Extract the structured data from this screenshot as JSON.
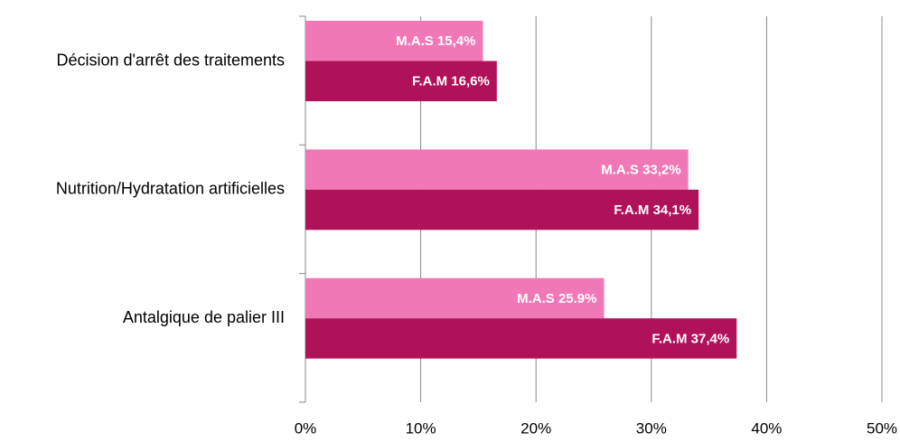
{
  "chart_data": {
    "type": "barh",
    "categories": [
      "Décision d'arrêt des traitements",
      "Nutrition/Hydratation artificielles",
      "Antalgique de palier III"
    ],
    "series": [
      {
        "name": "M.A.S",
        "color": "#f178b6",
        "values": [
          15.4,
          33.2,
          25.9
        ],
        "value_labels": [
          "M.A.S 15,4%",
          "M.A.S 33,2%",
          "M.A.S 25.9%"
        ]
      },
      {
        "name": "F.A.M",
        "color": "#b0125a",
        "values": [
          16.6,
          34.1,
          37.4
        ],
        "value_labels": [
          "F.A.M 16,6%",
          "F.A.M 34,1%",
          "F.A.M 37,4%"
        ]
      }
    ],
    "xlim": [
      0,
      50
    ],
    "xticks": [
      {
        "value": 0,
        "label": "0%"
      },
      {
        "value": 10,
        "label": "10%"
      },
      {
        "value": 20,
        "label": "20%"
      },
      {
        "value": 30,
        "label": "30%"
      },
      {
        "value": 40,
        "label": "40%"
      },
      {
        "value": 50,
        "label": "50%"
      }
    ],
    "grid": true
  }
}
